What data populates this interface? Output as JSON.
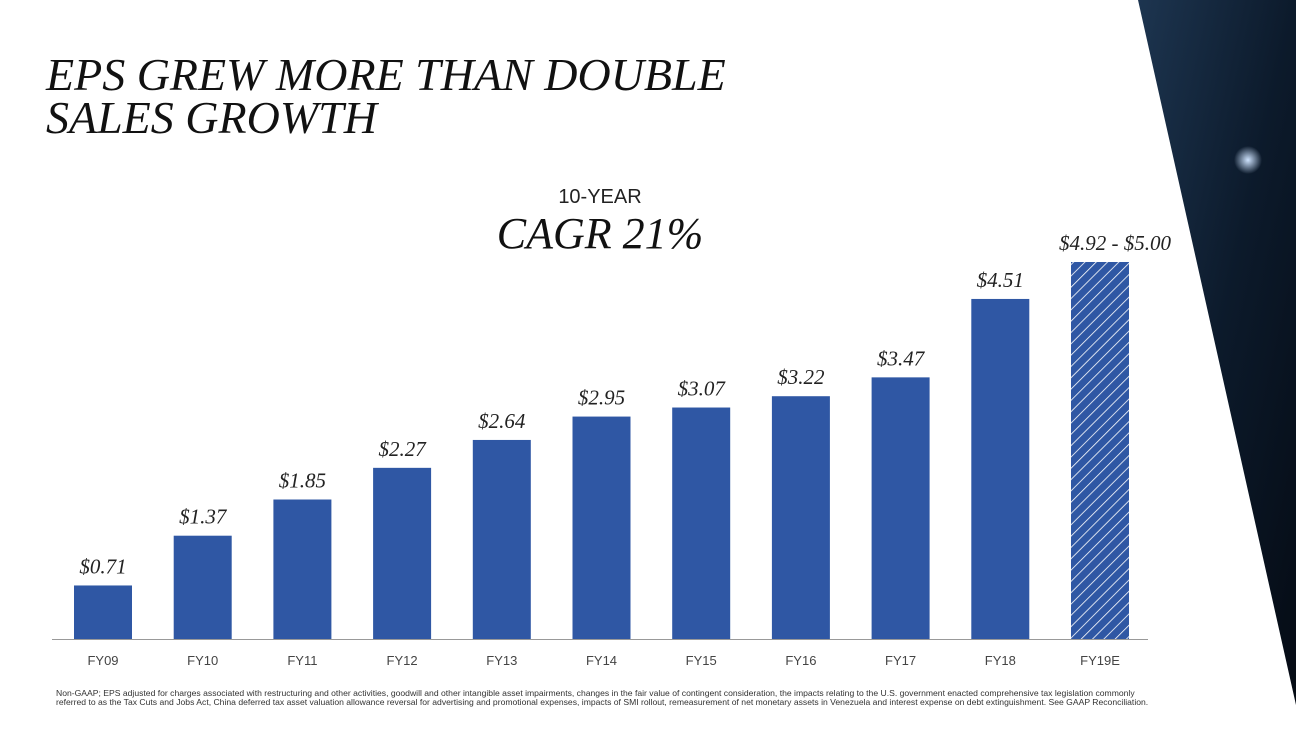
{
  "chart_data": {
    "type": "bar",
    "title": [
      "EPS GREW MORE THAN DOUBLE",
      "SALES GROWTH"
    ],
    "subtitle": "10-YEAR",
    "annotation": "CAGR 21%",
    "categories": [
      "FY09",
      "FY10",
      "FY11",
      "FY12",
      "FY13",
      "FY14",
      "FY15",
      "FY16",
      "FY17",
      "FY18",
      "FY19E"
    ],
    "values": [
      0.71,
      1.37,
      1.85,
      2.27,
      2.64,
      2.95,
      3.07,
      3.22,
      3.47,
      4.51,
      5.0
    ],
    "value_labels": [
      "$0.71",
      "$1.37",
      "$1.85",
      "$2.27",
      "$2.64",
      "$2.95",
      "$3.07",
      "$3.22",
      "$3.47",
      "$4.51",
      "$4.92 - $5.00"
    ],
    "pattern": [
      "solid",
      "solid",
      "solid",
      "solid",
      "solid",
      "solid",
      "solid",
      "solid",
      "solid",
      "solid",
      "hatch"
    ],
    "color": "#2f57a4",
    "footnote": "Non-GAAP; EPS adjusted for charges associated with restructuring and other activities, goodwill and other intangible asset impairments, changes in the fair value of contingent consideration, the impacts relating to the U.S. government enacted comprehensive tax legislation commonly referred to as the Tax Cuts and Jobs Act, China deferred tax asset valuation allowance reversal for advertising and promotional expenses, impacts of SMI rollout, remeasurement of net monetary assets in Venezuela and interest expense on debt extinguishment. See GAAP Reconciliation."
  }
}
